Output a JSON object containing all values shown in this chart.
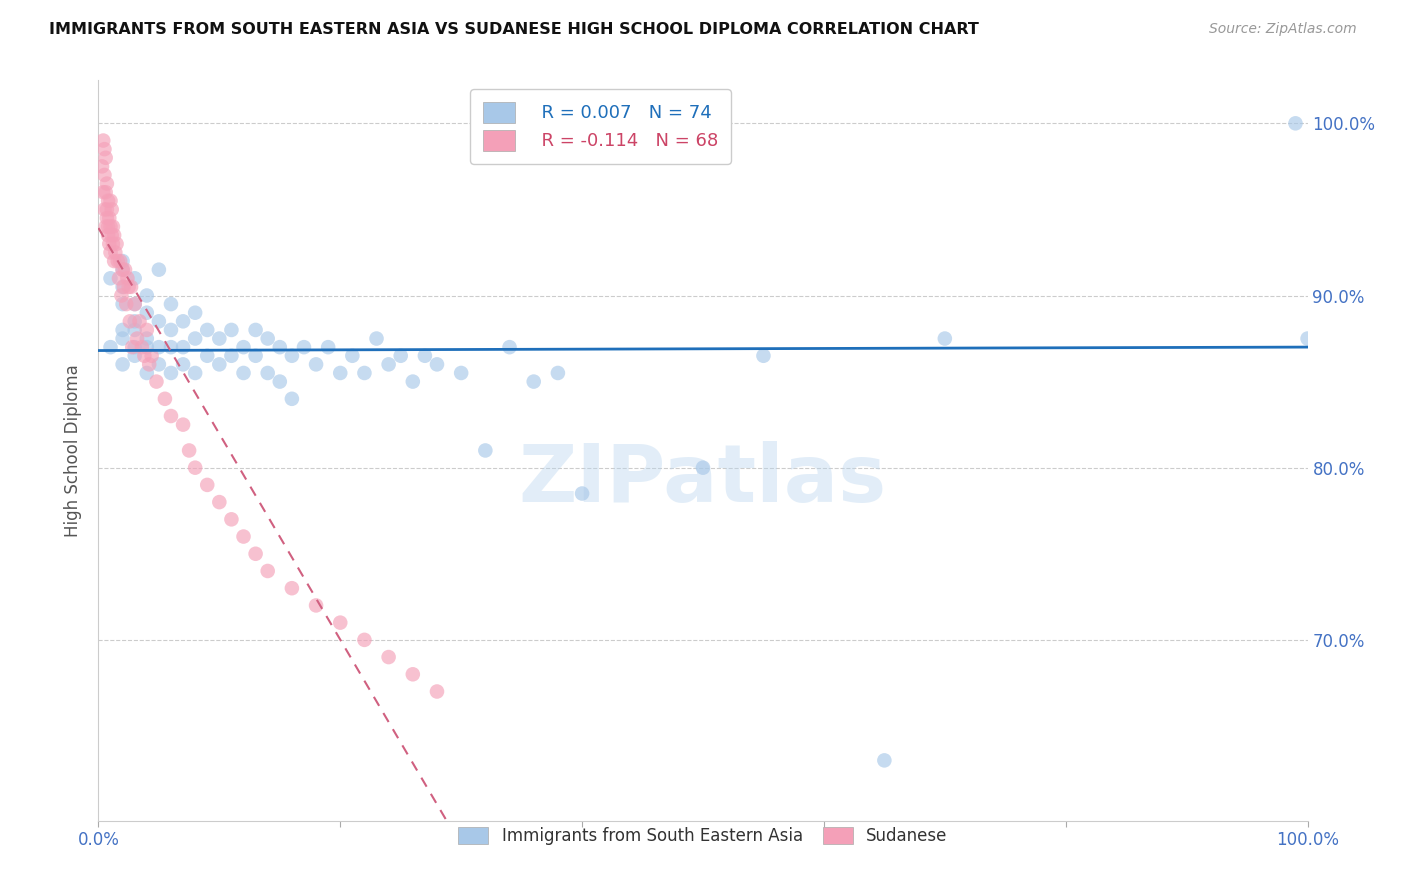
{
  "title": "IMMIGRANTS FROM SOUTH EASTERN ASIA VS SUDANESE HIGH SCHOOL DIPLOMA CORRELATION CHART",
  "source": "Source: ZipAtlas.com",
  "ylabel": "High School Diploma",
  "ytick_labels": [
    "100.0%",
    "90.0%",
    "80.0%",
    "70.0%"
  ],
  "ytick_values": [
    1.0,
    0.9,
    0.8,
    0.7
  ],
  "xlim": [
    0.0,
    1.0
  ],
  "ylim": [
    0.595,
    1.025
  ],
  "legend_blue_r": "R = 0.007",
  "legend_blue_n": "N = 74",
  "legend_pink_r": "R = -0.114",
  "legend_pink_n": "N = 68",
  "blue_color": "#a8c8e8",
  "pink_color": "#f4a0b8",
  "blue_line_color": "#1f6fba",
  "pink_line_color": "#d06080",
  "watermark": "ZIPatlas",
  "blue_r": 0.007,
  "blue_n": 74,
  "pink_r": -0.114,
  "pink_n": 68,
  "blue_scatter_x": [
    0.01,
    0.01,
    0.02,
    0.02,
    0.02,
    0.02,
    0.02,
    0.02,
    0.02,
    0.03,
    0.03,
    0.03,
    0.03,
    0.03,
    0.03,
    0.04,
    0.04,
    0.04,
    0.04,
    0.04,
    0.05,
    0.05,
    0.05,
    0.05,
    0.06,
    0.06,
    0.06,
    0.06,
    0.07,
    0.07,
    0.07,
    0.08,
    0.08,
    0.08,
    0.09,
    0.09,
    0.1,
    0.1,
    0.11,
    0.11,
    0.12,
    0.12,
    0.13,
    0.13,
    0.14,
    0.14,
    0.15,
    0.15,
    0.16,
    0.16,
    0.17,
    0.18,
    0.19,
    0.2,
    0.21,
    0.22,
    0.23,
    0.24,
    0.25,
    0.26,
    0.27,
    0.28,
    0.3,
    0.32,
    0.34,
    0.36,
    0.38,
    0.4,
    0.5,
    0.55,
    0.65,
    0.7,
    0.99,
    1.0
  ],
  "blue_scatter_y": [
    0.87,
    0.91,
    0.88,
    0.895,
    0.905,
    0.915,
    0.875,
    0.86,
    0.92,
    0.885,
    0.87,
    0.895,
    0.91,
    0.865,
    0.88,
    0.9,
    0.875,
    0.855,
    0.89,
    0.87,
    0.915,
    0.885,
    0.87,
    0.86,
    0.895,
    0.88,
    0.87,
    0.855,
    0.885,
    0.87,
    0.86,
    0.89,
    0.875,
    0.855,
    0.88,
    0.865,
    0.875,
    0.86,
    0.88,
    0.865,
    0.87,
    0.855,
    0.88,
    0.865,
    0.875,
    0.855,
    0.87,
    0.85,
    0.865,
    0.84,
    0.87,
    0.86,
    0.87,
    0.855,
    0.865,
    0.855,
    0.875,
    0.86,
    0.865,
    0.85,
    0.865,
    0.86,
    0.855,
    0.81,
    0.87,
    0.85,
    0.855,
    0.785,
    0.8,
    0.865,
    0.63,
    0.875,
    1.0,
    0.875
  ],
  "pink_scatter_x": [
    0.003,
    0.004,
    0.004,
    0.005,
    0.005,
    0.005,
    0.006,
    0.006,
    0.006,
    0.007,
    0.007,
    0.007,
    0.008,
    0.008,
    0.008,
    0.009,
    0.009,
    0.01,
    0.01,
    0.01,
    0.011,
    0.011,
    0.012,
    0.012,
    0.013,
    0.013,
    0.014,
    0.015,
    0.016,
    0.017,
    0.018,
    0.019,
    0.02,
    0.021,
    0.022,
    0.023,
    0.024,
    0.025,
    0.026,
    0.027,
    0.028,
    0.03,
    0.032,
    0.034,
    0.036,
    0.038,
    0.04,
    0.042,
    0.044,
    0.048,
    0.055,
    0.06,
    0.07,
    0.075,
    0.08,
    0.09,
    0.1,
    0.11,
    0.12,
    0.13,
    0.14,
    0.16,
    0.18,
    0.2,
    0.22,
    0.24,
    0.26,
    0.28
  ],
  "pink_scatter_y": [
    0.975,
    0.96,
    0.99,
    0.95,
    0.97,
    0.985,
    0.94,
    0.96,
    0.98,
    0.945,
    0.965,
    0.95,
    0.935,
    0.955,
    0.94,
    0.945,
    0.93,
    0.94,
    0.955,
    0.925,
    0.935,
    0.95,
    0.93,
    0.94,
    0.92,
    0.935,
    0.925,
    0.93,
    0.92,
    0.91,
    0.92,
    0.9,
    0.915,
    0.905,
    0.915,
    0.895,
    0.91,
    0.905,
    0.885,
    0.905,
    0.87,
    0.895,
    0.875,
    0.885,
    0.87,
    0.865,
    0.88,
    0.86,
    0.865,
    0.85,
    0.84,
    0.83,
    0.825,
    0.81,
    0.8,
    0.79,
    0.78,
    0.77,
    0.76,
    0.75,
    0.74,
    0.73,
    0.72,
    0.71,
    0.7,
    0.69,
    0.68,
    0.67
  ]
}
